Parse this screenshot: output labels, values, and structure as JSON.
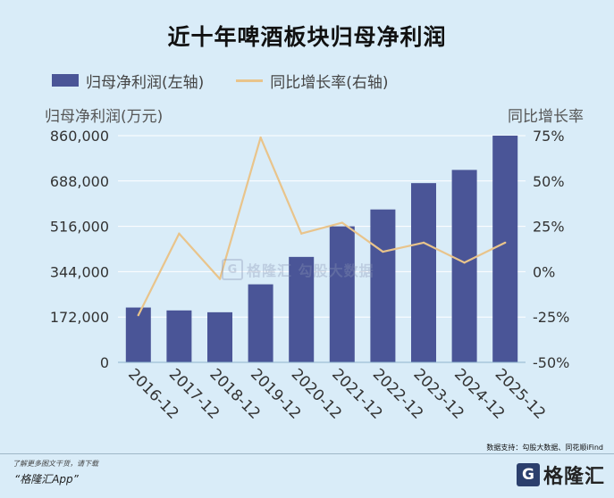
{
  "header": {
    "title": "近十年啤酒板块归母净利润"
  },
  "legend": {
    "bar_label": "归母净利润(左轴)",
    "line_label": "同比增长率(右轴)"
  },
  "axes": {
    "left_title": "归母净利润(万元)",
    "right_title": "同比增长率"
  },
  "watermark": {
    "icon_letter": "G",
    "text": "格隆汇 勾股大数据"
  },
  "footer": {
    "source": "数据支持：勾股大数据、同花顺iFind",
    "note": "了解更多图文干货，请下载",
    "app": "“格隆汇App”",
    "brand_letter": "G",
    "brand_name": "格隆汇"
  },
  "colors": {
    "bar": "#4a5597",
    "line": "#e9c48b",
    "background": "#d9ecf8",
    "grid": "#ffffff"
  },
  "chart_data": {
    "type": "bar",
    "title": "近十年啤酒板块归母净利润",
    "categories": [
      "2016-12",
      "2017-12",
      "2018-12",
      "2019-12",
      "2020-12",
      "2021-12",
      "2022-12",
      "2023-12",
      "2024-12",
      "2025-12"
    ],
    "series": [
      {
        "name": "归母净利润(左轴)",
        "type": "bar",
        "axis": "left",
        "values": [
          208000,
          197000,
          190000,
          296000,
          400000,
          516000,
          580000,
          680000,
          730000,
          860000
        ]
      },
      {
        "name": "同比增长率(右轴)",
        "type": "line",
        "axis": "right",
        "values": [
          -24,
          21,
          -4,
          74,
          21,
          27,
          11,
          16,
          5,
          16
        ]
      }
    ],
    "ylabel": "归母净利润(万元)",
    "ylim": [
      0,
      860000
    ],
    "yticks": [
      "0",
      "172,000",
      "344,000",
      "516,000",
      "688,000",
      "860,000"
    ],
    "ylabel_right": "同比增长率",
    "ylim_right": [
      -50,
      75
    ],
    "yticks_right": [
      "-50%",
      "-25%",
      "0%",
      "25%",
      "50%",
      "75%"
    ],
    "grid": true,
    "legend": "top-left"
  }
}
